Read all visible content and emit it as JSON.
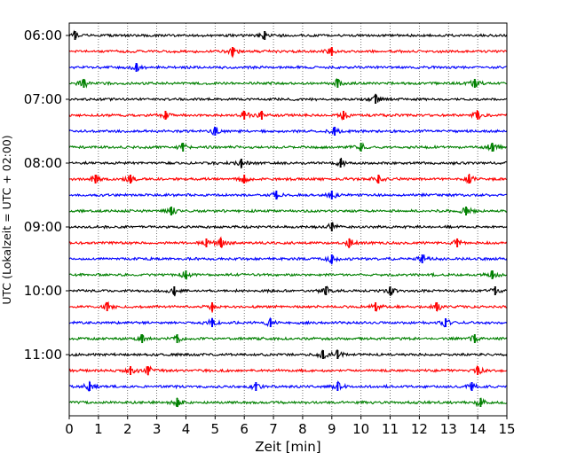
{
  "chart_data": {
    "type": "line",
    "title": "",
    "xlabel": "Zeit  [min]",
    "ylabel": "UTC (Lokalzeit = UTC + 02:00)",
    "xlim": [
      0,
      15
    ],
    "x_ticks": [
      "0",
      "1",
      "2",
      "3",
      "4",
      "5",
      "6",
      "7",
      "8",
      "9",
      "10",
      "11",
      "12",
      "13",
      "14",
      "15"
    ],
    "y_ticks": [
      "06:00",
      "07:00",
      "08:00",
      "09:00",
      "10:00",
      "11:00"
    ],
    "grid": {
      "x": true,
      "y": false,
      "style": "dotted"
    },
    "trace_interval_minutes": 15,
    "trace_color_cycle": [
      "#000000",
      "#ff0000",
      "#0000ff",
      "#008000"
    ],
    "traces": [
      {
        "start": "06:00",
        "color": "#000000",
        "events": [
          0.2,
          6.7
        ]
      },
      {
        "start": "06:15",
        "color": "#ff0000",
        "events": [
          5.6,
          9.0
        ]
      },
      {
        "start": "06:30",
        "color": "#0000ff",
        "events": [
          2.3
        ]
      },
      {
        "start": "06:45",
        "color": "#008000",
        "events": [
          0.5,
          9.2,
          13.9
        ]
      },
      {
        "start": "07:00",
        "color": "#000000",
        "events": [
          10.5
        ]
      },
      {
        "start": "07:15",
        "color": "#ff0000",
        "events": [
          3.3,
          6.0,
          6.6,
          9.4,
          14.0
        ]
      },
      {
        "start": "07:30",
        "color": "#0000ff",
        "events": [
          5.0,
          9.1
        ]
      },
      {
        "start": "07:45",
        "color": "#008000",
        "events": [
          3.9,
          10.0,
          14.5
        ]
      },
      {
        "start": "08:00",
        "color": "#000000",
        "events": [
          5.9,
          9.3
        ]
      },
      {
        "start": "08:15",
        "color": "#ff0000",
        "events": [
          0.9,
          2.1,
          6.0,
          10.6,
          13.7
        ]
      },
      {
        "start": "08:30",
        "color": "#0000ff",
        "events": [
          7.1,
          9.0
        ]
      },
      {
        "start": "08:45",
        "color": "#008000",
        "events": [
          3.5,
          13.6
        ]
      },
      {
        "start": "09:00",
        "color": "#000000",
        "events": [
          9.0
        ]
      },
      {
        "start": "09:15",
        "color": "#ff0000",
        "events": [
          4.7,
          5.2,
          9.6,
          13.3
        ]
      },
      {
        "start": "09:30",
        "color": "#0000ff",
        "events": [
          9.0,
          12.1
        ]
      },
      {
        "start": "09:45",
        "color": "#008000",
        "events": [
          4.0,
          14.5
        ]
      },
      {
        "start": "10:00",
        "color": "#000000",
        "events": [
          3.6,
          8.8,
          11.0,
          14.6
        ]
      },
      {
        "start": "10:15",
        "color": "#ff0000",
        "events": [
          1.3,
          4.9,
          10.5,
          12.6
        ]
      },
      {
        "start": "10:30",
        "color": "#0000ff",
        "events": [
          4.9,
          6.9,
          12.9
        ]
      },
      {
        "start": "10:45",
        "color": "#008000",
        "events": [
          2.5,
          3.7,
          13.9
        ]
      },
      {
        "start": "11:00",
        "color": "#000000",
        "events": [
          8.7,
          9.2
        ]
      },
      {
        "start": "11:15",
        "color": "#ff0000",
        "events": [
          2.1,
          2.7,
          14.0
        ]
      },
      {
        "start": "11:30",
        "color": "#0000ff",
        "events": [
          0.7,
          6.4,
          9.2,
          13.8
        ]
      },
      {
        "start": "11:45",
        "color": "#008000",
        "events": [
          3.7,
          14.1
        ]
      }
    ]
  }
}
